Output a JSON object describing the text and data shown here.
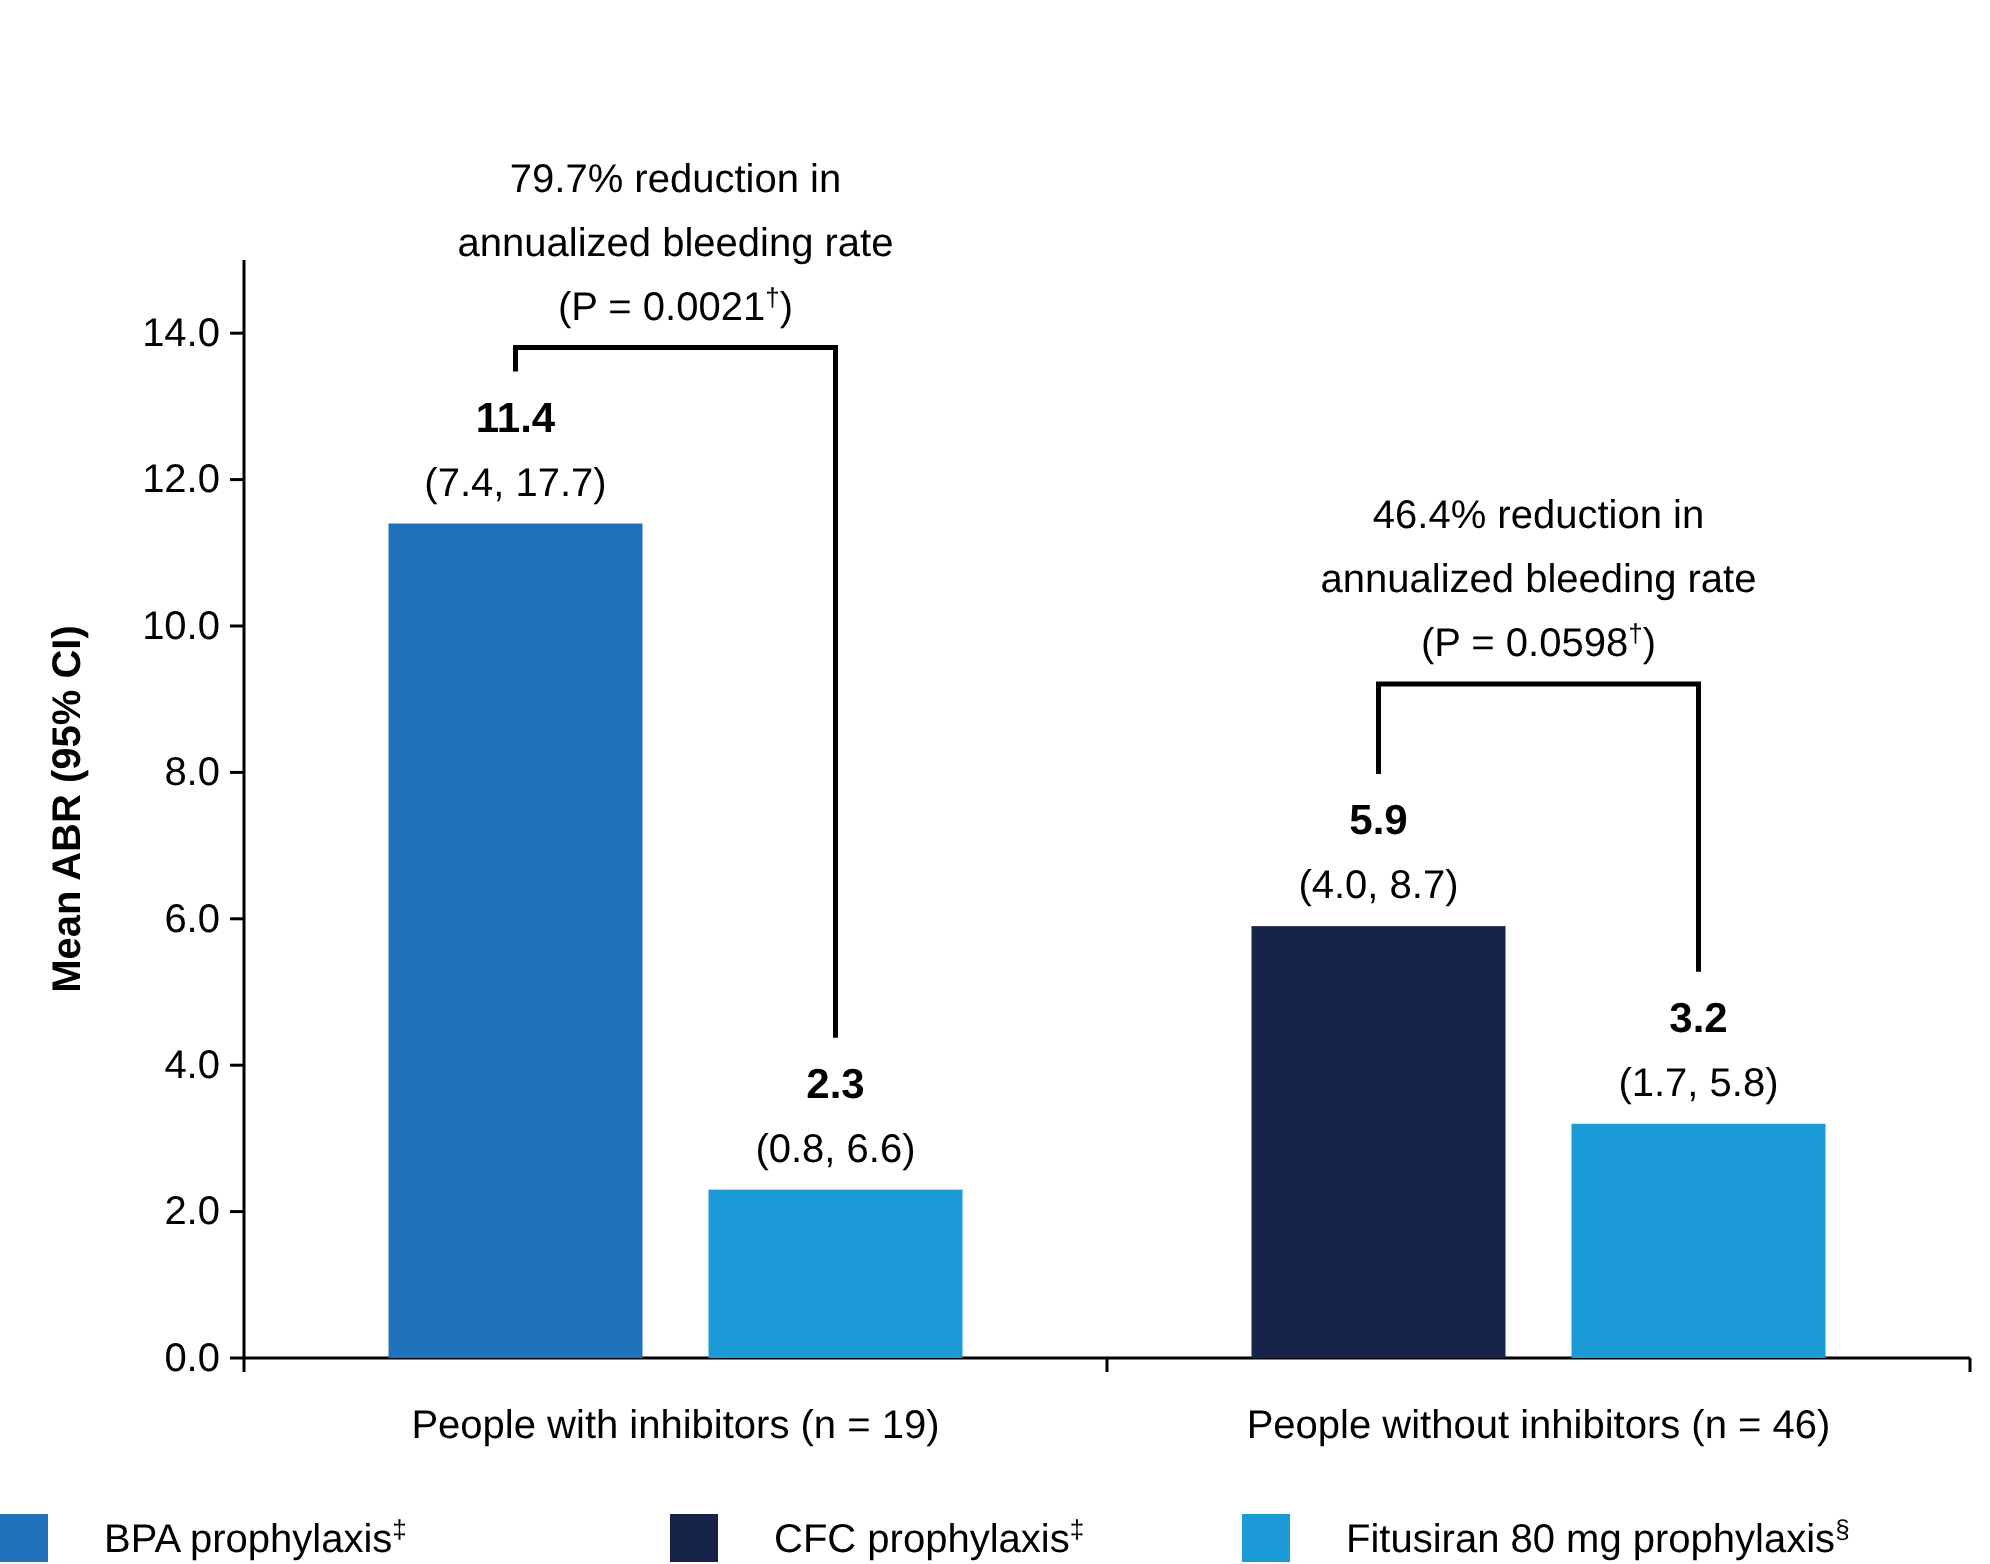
{
  "chart_data": {
    "type": "bar",
    "ylabel": "Mean ABR (95% CI)",
    "categories": [
      "People with inhibitors (n = 19)",
      "People without inhibitors (n = 46)"
    ],
    "series": [
      {
        "name": "BPA prophylaxis$^{‡}$",
        "color": "#1f72bb",
        "values": [
          11.4,
          null
        ],
        "value_labels": [
          "11.4\n(7.4, 17.7)",
          null
        ]
      },
      {
        "name": "CFC prophylaxis$^{‡}$",
        "color": "#16234a",
        "values": [
          null,
          5.9
        ],
        "value_labels": [
          null,
          "5.9\n(4.0, 8.7)"
        ]
      },
      {
        "name": "Fitusiran 80 mg prophylaxis$^{§}$",
        "color": "#1a9ad6",
        "values": [
          2.3,
          3.2
        ],
        "value_labels": [
          "2.3\n(0.8, 6.6)",
          "3.2\n(1.7, 5.8)"
        ]
      }
    ],
    "ylim": [
      0,
      15
    ],
    "yticks": [
      {
        "value": 0,
        "label": "0.0"
      },
      {
        "value": 2,
        "label": "2.0"
      },
      {
        "value": 4,
        "label": "4.0"
      },
      {
        "value": 6,
        "label": "6.0"
      },
      {
        "value": 8,
        "label": "8.0"
      },
      {
        "value": 10,
        "label": "10.0"
      },
      {
        "value": 12,
        "label": "12.0"
      },
      {
        "value": 14,
        "label": "14.0"
      }
    ],
    "grid": false,
    "legend": "bottom",
    "annotations": [
      "79.7% reduction in\nannualized bleeding rate\n(P = 0.0021$^{†}$)",
      "46.4% reduction in\nannualized bleeding rate\n(P = 0.0598$^{†}$)"
    ]
  }
}
